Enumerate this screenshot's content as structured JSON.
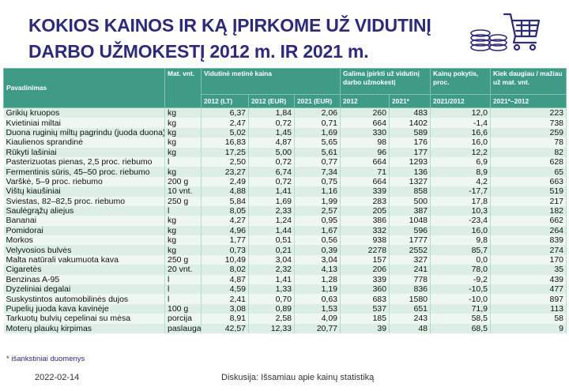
{
  "title": {
    "line1": "KOKIOS KAINOS IR KĄ ĮPIRKOME UŽ VIDUTINĮ",
    "line2": "DARBO UŽMOKESTĮ 2012 m. IR 2021 m."
  },
  "icons": {
    "coins": "coins-icon",
    "cart": "shopping-cart-icon"
  },
  "colors": {
    "title": "#2e2a7a",
    "header": "#3f9a86",
    "row_odd": "#ddefe5",
    "row_even": "#eef7f1"
  },
  "table": {
    "headers": {
      "name": "Pavadinimas",
      "unit": "Mat. vnt.",
      "price_group": "Vidutinė metinė kaina",
      "afford_group": "Galima įpirkti už vidutinį darbo užmokestį",
      "change_group": "Kainų pokytis, proc.",
      "diff_group": "Kiek daugiau / mažiau už mat. vnt.",
      "p2012lt": "2012 (LT)",
      "p2012eur": "2012 (EUR)",
      "p2021eur": "2021 (EUR)",
      "a2012": "2012",
      "a2021": "2021*",
      "change": "2021/2012",
      "diff": "2021*–2012"
    },
    "rows": [
      [
        "Grikių kruopos",
        "kg",
        "6,37",
        "1,84",
        "2,06",
        "260",
        "483",
        "12,0",
        "223"
      ],
      [
        "Kvietiniai miltai",
        "kg",
        "2,47",
        "0,72",
        "0,71",
        "664",
        "1402",
        "-1,4",
        "738"
      ],
      [
        "Duona ruginių miltų pagrindu (juoda duona)",
        "kg",
        "5,02",
        "1,45",
        "1,69",
        "330",
        "589",
        "16,6",
        "259"
      ],
      [
        "Kiaulienos sprandinė",
        "kg",
        "16,83",
        "4,87",
        "5,65",
        "98",
        "176",
        "16,0",
        "78"
      ],
      [
        "Rūkyti lašiniai",
        "kg",
        "17,25",
        "5,00",
        "5,61",
        "96",
        "177",
        "12,2",
        "82"
      ],
      [
        "Pasterizuotas pienas, 2,5 proc. riebumo",
        "l",
        "2,50",
        "0,72",
        "0,77",
        "664",
        "1293",
        "6,9",
        "628"
      ],
      [
        "Fermentinis sūris, 45–50 proc. riebumo",
        "kg",
        "23,27",
        "6,74",
        "7,34",
        "71",
        "136",
        "8,9",
        "65"
      ],
      [
        "Varškė, 5–9 proc. riebumo",
        "200 g",
        "2,49",
        "0,72",
        "0,75",
        "664",
        "1327",
        "4,2",
        "663"
      ],
      [
        "Vištų kiaušiniai",
        "10 vnt.",
        "4,88",
        "1,41",
        "1,16",
        "339",
        "858",
        "-17,7",
        "519"
      ],
      [
        "Sviestas, 82–82,5 proc. riebumo",
        "250 g",
        "5,84",
        "1,69",
        "1,99",
        "283",
        "500",
        "17,8",
        "217"
      ],
      [
        "Saulėgrąžų aliejus",
        "l",
        "8,05",
        "2,33",
        "2,57",
        "205",
        "387",
        "10,3",
        "182"
      ],
      [
        "Bananai",
        "kg",
        "4,27",
        "1,24",
        "0,95",
        "386",
        "1048",
        "-23,4",
        "662"
      ],
      [
        "Pomidorai",
        "kg",
        "4,96",
        "1,44",
        "1,67",
        "332",
        "596",
        "16,0",
        "264"
      ],
      [
        "Morkos",
        "kg",
        "1,77",
        "0,51",
        "0,56",
        "938",
        "1777",
        "9,8",
        "839"
      ],
      [
        "Velyvosios bulvės",
        "kg",
        "0,73",
        "0,21",
        "0,39",
        "2278",
        "2552",
        "85,7",
        "274"
      ],
      [
        "Malta natūrali vakumuota kava",
        "250 g",
        "10,49",
        "3,04",
        "3,04",
        "157",
        "327",
        "0,0",
        "170"
      ],
      [
        "Cigaretės",
        "20 vnt.",
        "8,02",
        "2,32",
        "4,13",
        "206",
        "241",
        "78,0",
        "35"
      ],
      [
        "Benzinas A-95",
        "l",
        "4,87",
        "1,41",
        "1,28",
        "339",
        "778",
        "-9,2",
        "439"
      ],
      [
        "Dyzeliniai degalai",
        "l",
        "4,59",
        "1,33",
        "1,19",
        "360",
        "836",
        "-10,5",
        "477"
      ],
      [
        "Suskystintos automobilinės dujos",
        "l",
        "2,41",
        "0,70",
        "0,63",
        "683",
        "1580",
        "-10,0",
        "897"
      ],
      [
        "Pupelių juoda kava kavinėje",
        "100 g",
        "3,08",
        "0,89",
        "1,53",
        "537",
        "651",
        "71,9",
        "113"
      ],
      [
        "Tarkuotų bulvių cepelinai su mėsa",
        "porcija",
        "8,91",
        "2,58",
        "4,09",
        "185",
        "243",
        "58,5",
        "58"
      ],
      [
        "Moterų plaukų kirpimas",
        "paslauga",
        "42,57",
        "12,33",
        "20,77",
        "39",
        "48",
        "68,5",
        "9"
      ]
    ]
  },
  "footnote": "* išankstiniai duomenys",
  "footer": {
    "date": "2022-02-14",
    "discussion": "Diskusija: Išsamiau apie kainų statistiką"
  }
}
